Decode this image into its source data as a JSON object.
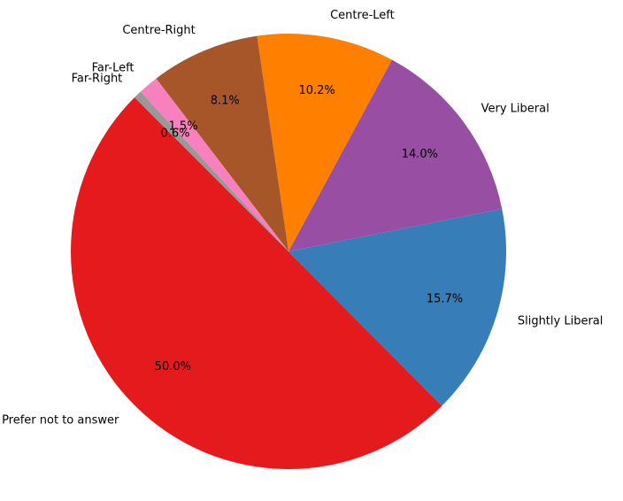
{
  "chart_data": {
    "type": "pie",
    "title": "",
    "legend": "none",
    "start_angle_deg": 135,
    "direction": "counterclockwise",
    "slices": [
      {
        "label": "Prefer not to answer",
        "value": 50.0,
        "pct_label": "50.0%",
        "color": "#e41a1c"
      },
      {
        "label": "Slightly Liberal",
        "value": 15.7,
        "pct_label": "15.7%",
        "color": "#377eb8"
      },
      {
        "label": "Very Liberal",
        "value": 14.0,
        "pct_label": "14.0%",
        "color": "#984ea3"
      },
      {
        "label": "Centre-Left",
        "value": 10.2,
        "pct_label": "10.2%",
        "color": "#ff7f00"
      },
      {
        "label": "Centre-Right",
        "value": 8.1,
        "pct_label": "8.1%",
        "color": "#a65628"
      },
      {
        "label": "Far-Left",
        "value": 1.5,
        "pct_label": "1.5%",
        "color": "#f781bf"
      },
      {
        "label": "Far-Right",
        "value": 0.6,
        "pct_label": "0.6%",
        "color": "#999999"
      }
    ]
  }
}
